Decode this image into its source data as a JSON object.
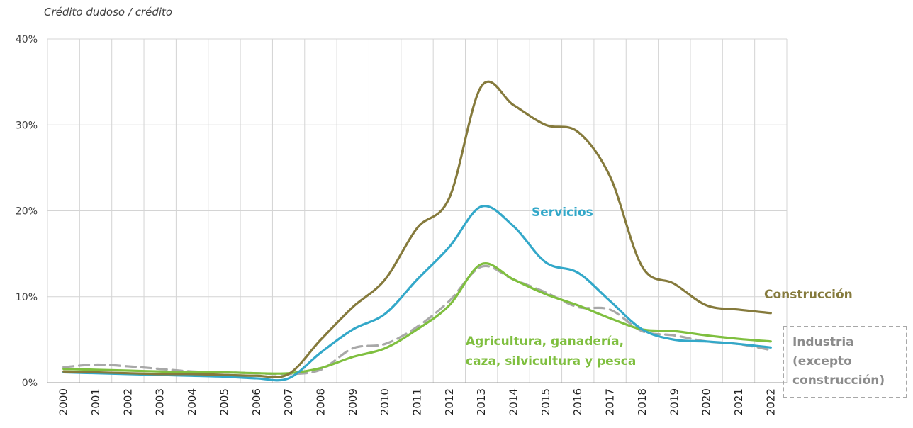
{
  "chart_data": {
    "type": "line",
    "ylabel": "Crédito dudoso / crédito",
    "xlabel": "",
    "title": "",
    "ylim": [
      0,
      40
    ],
    "yticks": [
      "0%",
      "10%",
      "20%",
      "30%",
      "40%"
    ],
    "categories": [
      "2000",
      "2001",
      "2002",
      "2003",
      "2004",
      "2005",
      "2006",
      "2007",
      "2008",
      "2009",
      "2010",
      "2011",
      "2012",
      "2013",
      "2014",
      "2015",
      "2016",
      "2017",
      "2018",
      "2019",
      "2020",
      "2021",
      "2022"
    ],
    "grid": true,
    "legend": "none (direct labels)",
    "series": [
      {
        "name": "Construcción",
        "color": "#857a3c",
        "style": "solid",
        "values": [
          1.3,
          1.2,
          1.1,
          1.0,
          1.0,
          0.9,
          0.8,
          1.0,
          5.0,
          8.8,
          12.0,
          18.0,
          21.5,
          34.5,
          32.3,
          30.0,
          29.2,
          24.0,
          13.5,
          11.5,
          9.0,
          8.5,
          8.1
        ]
      },
      {
        "name": "Servicios",
        "color": "#33a8c9",
        "style": "solid",
        "values": [
          1.2,
          1.1,
          1.0,
          0.9,
          0.8,
          0.7,
          0.5,
          0.5,
          3.5,
          6.2,
          8.0,
          12.0,
          15.8,
          20.5,
          18.2,
          14.0,
          12.8,
          9.5,
          6.2,
          5.0,
          4.8,
          4.5,
          4.1
        ]
      },
      {
        "name": "Agricultura, ganadería, caza, silvicultura y pesca",
        "name_lines": [
          "Agricultura, ganadería,",
          "caza, silvicultura y pesca"
        ],
        "color": "#7fbf3f",
        "style": "solid",
        "values": [
          1.6,
          1.5,
          1.4,
          1.3,
          1.2,
          1.2,
          1.1,
          1.1,
          1.7,
          3.0,
          4.0,
          6.2,
          9.0,
          13.8,
          12.0,
          10.3,
          9.0,
          7.5,
          6.2,
          6.0,
          5.5,
          5.1,
          4.8
        ]
      },
      {
        "name": "Industria (excepto construcción)",
        "name_lines": [
          "Industria",
          "(excepto",
          "construcción)"
        ],
        "color": "#a8a8a8",
        "style": "dashed",
        "values": [
          1.8,
          2.1,
          1.9,
          1.6,
          1.3,
          1.2,
          1.1,
          1.0,
          1.5,
          4.0,
          4.5,
          6.5,
          9.5,
          13.5,
          12.0,
          10.5,
          8.8,
          8.5,
          6.0,
          5.5,
          4.8,
          4.5,
          3.8
        ]
      }
    ]
  }
}
